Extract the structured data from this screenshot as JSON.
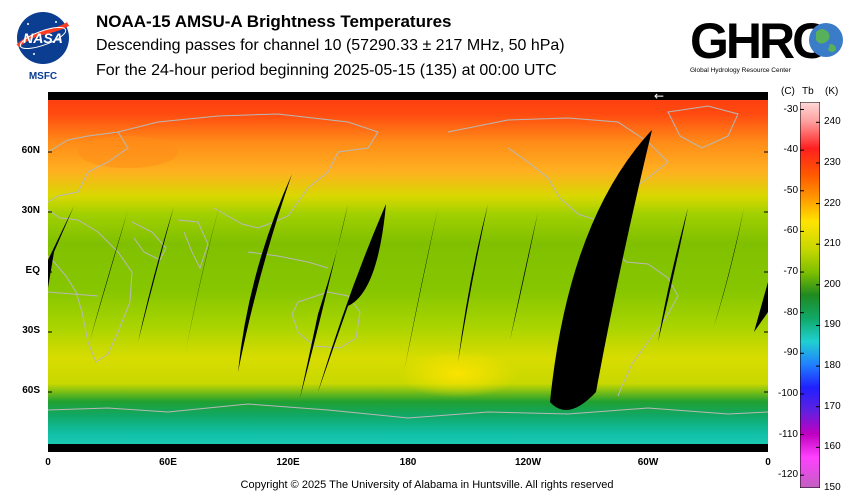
{
  "header": {
    "title": "NOAA-15 AMSU-A Brightness Temperatures",
    "subtitle": "Descending passes for channel 10 (57290.33 ± 217 MHz, 50 hPa)",
    "period": "For the 24-hour period beginning 2025-05-15 (135) at 00:00 UTC"
  },
  "logos": {
    "left_text": "NASA",
    "left_sub": "MSFC",
    "right_text": "GHRC",
    "right_sub": "Global Hydrology Resource Center"
  },
  "map": {
    "lat_labels": [
      "60N",
      "30N",
      "EQ",
      "30S",
      "60S"
    ],
    "lat_values": [
      60,
      30,
      0,
      -30,
      -60
    ],
    "lon_labels": [
      "0",
      "60E",
      "120E",
      "180",
      "120W",
      "60W",
      "0"
    ],
    "lon_values": [
      0,
      60,
      120,
      180,
      240,
      300,
      360
    ],
    "direction_arrow": "←",
    "colors": {
      "no_data": "#000000",
      "coast": "#b8b8b8"
    }
  },
  "colorbar": {
    "header_c": "(C)",
    "header_tb": "Tb",
    "header_k": "(K)",
    "celsius_labels": [
      "-30",
      "-40",
      "-50",
      "-60",
      "-70",
      "-80",
      "-90",
      "-100",
      "-110",
      "-120"
    ],
    "celsius_values": [
      -30,
      -40,
      -50,
      -60,
      -70,
      -80,
      -90,
      -100,
      -110,
      -120
    ],
    "kelvin_labels": [
      "240",
      "230",
      "220",
      "210",
      "200",
      "190",
      "180",
      "170",
      "160",
      "150"
    ],
    "kelvin_values": [
      240,
      230,
      220,
      210,
      200,
      190,
      180,
      170,
      160,
      150
    ],
    "kelvin_range": [
      150,
      245
    ]
  },
  "footer": {
    "copyright": "Copyright © 2025 The University of Alabama in Huntsville.  All rights reserved"
  }
}
